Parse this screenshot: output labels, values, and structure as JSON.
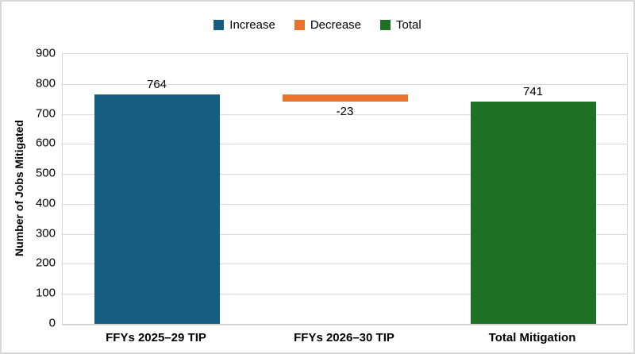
{
  "chart_data": {
    "type": "bar",
    "subtype": "waterfall",
    "title": "",
    "ylabel": "Number of Jobs Mitigated",
    "xlabel": "",
    "ylim": [
      0,
      900
    ],
    "ytick_step": 100,
    "yticks": [
      0,
      100,
      200,
      300,
      400,
      500,
      600,
      700,
      800,
      900
    ],
    "grid": true,
    "legend_position": "top-center",
    "legend": [
      {
        "label": "Increase",
        "color": "#155E82"
      },
      {
        "label": "Decrease",
        "color": "#E8732C"
      },
      {
        "label": "Total",
        "color": "#1E7123"
      }
    ],
    "categories": [
      "FFYs 2025–29 TIP",
      "FFYs 2026–30 TIP",
      "Total Mitigation"
    ],
    "bars": [
      {
        "category": "FFYs 2025–29 TIP",
        "series": "Increase",
        "value": 764,
        "segment_from": 0,
        "segment_to": 764,
        "label": "764",
        "label_position": "above",
        "color": "#155E82"
      },
      {
        "category": "FFYs 2026–30 TIP",
        "series": "Decrease",
        "value": -23,
        "segment_from": 741,
        "segment_to": 764,
        "label": "-23",
        "label_position": "below",
        "color": "#E8732C"
      },
      {
        "category": "Total Mitigation",
        "series": "Total",
        "value": 741,
        "segment_from": 0,
        "segment_to": 741,
        "label": "741",
        "label_position": "above",
        "color": "#1E7123"
      }
    ]
  },
  "colors": {
    "increase": "#155E82",
    "decrease": "#E8732C",
    "total": "#1E7123",
    "gridline": "#D9D9D9",
    "axis_line": "#D3D3D3",
    "frame_border": "#D9D9D9",
    "text": "#000000",
    "background": "#FFFFFF"
  }
}
